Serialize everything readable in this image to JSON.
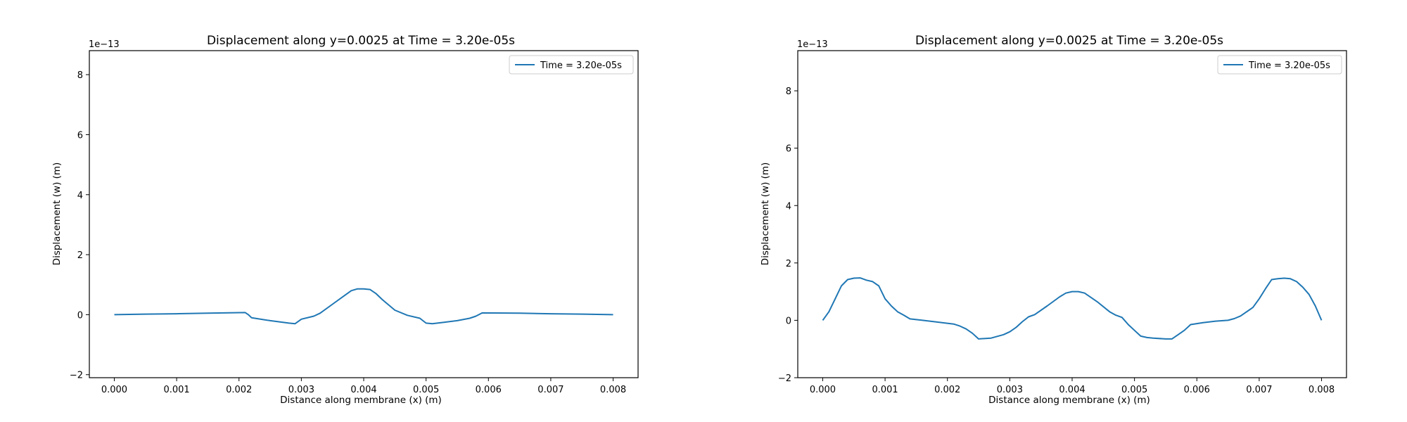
{
  "chart_data": [
    {
      "type": "line",
      "title": "Displacement along y=0.0025 at Time = 3.20e-05s",
      "xlabel": "Distance along membrane (x) (m)",
      "ylabel": "Displacement (w) (m)",
      "y_offset_text": "1e−13",
      "xlim": [
        -0.0004,
        0.0084
      ],
      "ylim": [
        -2.1,
        8.8
      ],
      "x_ticks": [
        0.0,
        0.001,
        0.002,
        0.003,
        0.004,
        0.005,
        0.006,
        0.007,
        0.008
      ],
      "x_tick_labels": [
        "0.000",
        "0.001",
        "0.002",
        "0.003",
        "0.004",
        "0.005",
        "0.006",
        "0.007",
        "0.008"
      ],
      "y_ticks": [
        -2,
        0,
        2,
        4,
        6,
        8
      ],
      "y_tick_labels": [
        "−2",
        "0",
        "2",
        "4",
        "6",
        "8"
      ],
      "grid": false,
      "legend_position": "top-right",
      "series": [
        {
          "name": "Time = 3.20e-05s",
          "color": "#1f77b4",
          "x": [
            0.0,
            0.0005,
            0.001,
            0.0015,
            0.0021,
            0.00215,
            0.0022,
            0.0025,
            0.0028,
            0.0029,
            0.003,
            0.0032,
            0.0033,
            0.0035,
            0.0037,
            0.0038,
            0.0039,
            0.004,
            0.0041,
            0.0042,
            0.0043,
            0.0045,
            0.0047,
            0.0049,
            0.005,
            0.0051,
            0.0053,
            0.0055,
            0.0057,
            0.0058,
            0.0059,
            0.0065,
            0.007,
            0.0075,
            0.008
          ],
          "y": [
            0.0,
            0.02,
            0.03,
            0.05,
            0.07,
            0.0,
            -0.1,
            -0.2,
            -0.28,
            -0.3,
            -0.15,
            -0.05,
            0.05,
            0.35,
            0.65,
            0.8,
            0.86,
            0.86,
            0.84,
            0.7,
            0.5,
            0.15,
            -0.02,
            -0.12,
            -0.28,
            -0.3,
            -0.25,
            -0.2,
            -0.12,
            -0.05,
            0.06,
            0.05,
            0.03,
            0.02,
            0.0
          ]
        }
      ]
    },
    {
      "type": "line",
      "title": "Displacement along y=0.0025 at Time = 3.20e-05s",
      "xlabel": "Distance along membrane (x) (m)",
      "ylabel": "Displacement (w) (m)",
      "y_offset_text": "1e−13",
      "xlim": [
        -0.0004,
        0.0084
      ],
      "ylim": [
        -2.0,
        9.4
      ],
      "x_ticks": [
        0.0,
        0.001,
        0.002,
        0.003,
        0.004,
        0.005,
        0.006,
        0.007,
        0.008
      ],
      "x_tick_labels": [
        "0.000",
        "0.001",
        "0.002",
        "0.003",
        "0.004",
        "0.005",
        "0.006",
        "0.007",
        "0.008"
      ],
      "y_ticks": [
        -2,
        0,
        2,
        4,
        6,
        8
      ],
      "y_tick_labels": [
        "−2",
        "0",
        "2",
        "4",
        "6",
        "8"
      ],
      "grid": false,
      "legend_position": "top-right",
      "series": [
        {
          "name": "Time = 3.20e-05s",
          "color": "#1f77b4",
          "x": [
            0.0,
            0.0001,
            0.0002,
            0.0003,
            0.0004,
            0.0005,
            0.0006,
            0.0007,
            0.0008,
            0.0009,
            0.001,
            0.0011,
            0.0012,
            0.0013,
            0.0014,
            0.0016,
            0.0018,
            0.0021,
            0.0022,
            0.0023,
            0.0024,
            0.0025,
            0.0027,
            0.0029,
            0.003,
            0.0031,
            0.0032,
            0.0033,
            0.0034,
            0.0036,
            0.0038,
            0.0039,
            0.004,
            0.0041,
            0.0042,
            0.0044,
            0.0046,
            0.0047,
            0.0048,
            0.0049,
            0.005,
            0.0051,
            0.0052,
            0.0053,
            0.0055,
            0.0056,
            0.0057,
            0.0058,
            0.0059,
            0.0061,
            0.0063,
            0.0065,
            0.0066,
            0.0067,
            0.0069,
            0.007,
            0.0071,
            0.0072,
            0.0073,
            0.0074,
            0.0075,
            0.0076,
            0.0077,
            0.0078,
            0.0079,
            0.008
          ],
          "y": [
            0.0,
            0.3,
            0.75,
            1.2,
            1.42,
            1.47,
            1.48,
            1.4,
            1.35,
            1.2,
            0.75,
            0.5,
            0.3,
            0.18,
            0.05,
            0.0,
            -0.05,
            -0.13,
            -0.2,
            -0.3,
            -0.45,
            -0.65,
            -0.62,
            -0.5,
            -0.4,
            -0.25,
            -0.05,
            0.12,
            0.2,
            0.5,
            0.82,
            0.95,
            1.0,
            1.0,
            0.95,
            0.65,
            0.3,
            0.18,
            0.1,
            -0.15,
            -0.35,
            -0.55,
            -0.6,
            -0.62,
            -0.65,
            -0.65,
            -0.5,
            -0.35,
            -0.15,
            -0.08,
            -0.03,
            0.0,
            0.06,
            0.15,
            0.45,
            0.75,
            1.1,
            1.42,
            1.45,
            1.47,
            1.45,
            1.35,
            1.15,
            0.9,
            0.5,
            0.0
          ]
        }
      ]
    }
  ]
}
